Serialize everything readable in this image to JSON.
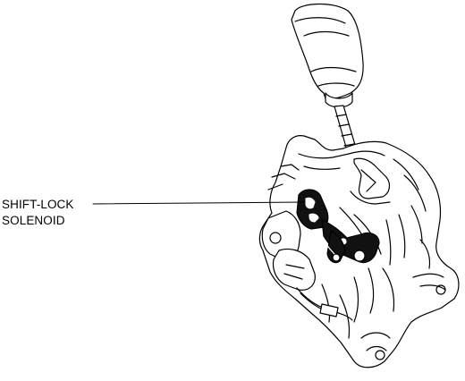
{
  "callout": {
    "line1": "SHIFT-LOCK",
    "line2": "SOLENOID"
  },
  "colors": {
    "ink": "#000000",
    "paper": "#ffffff",
    "solenoid_fill": "#111111"
  },
  "parts": [
    "shift-knob",
    "shift-lever-rod",
    "shifter-housing",
    "shift-lock-solenoid",
    "mounting-bracket"
  ]
}
